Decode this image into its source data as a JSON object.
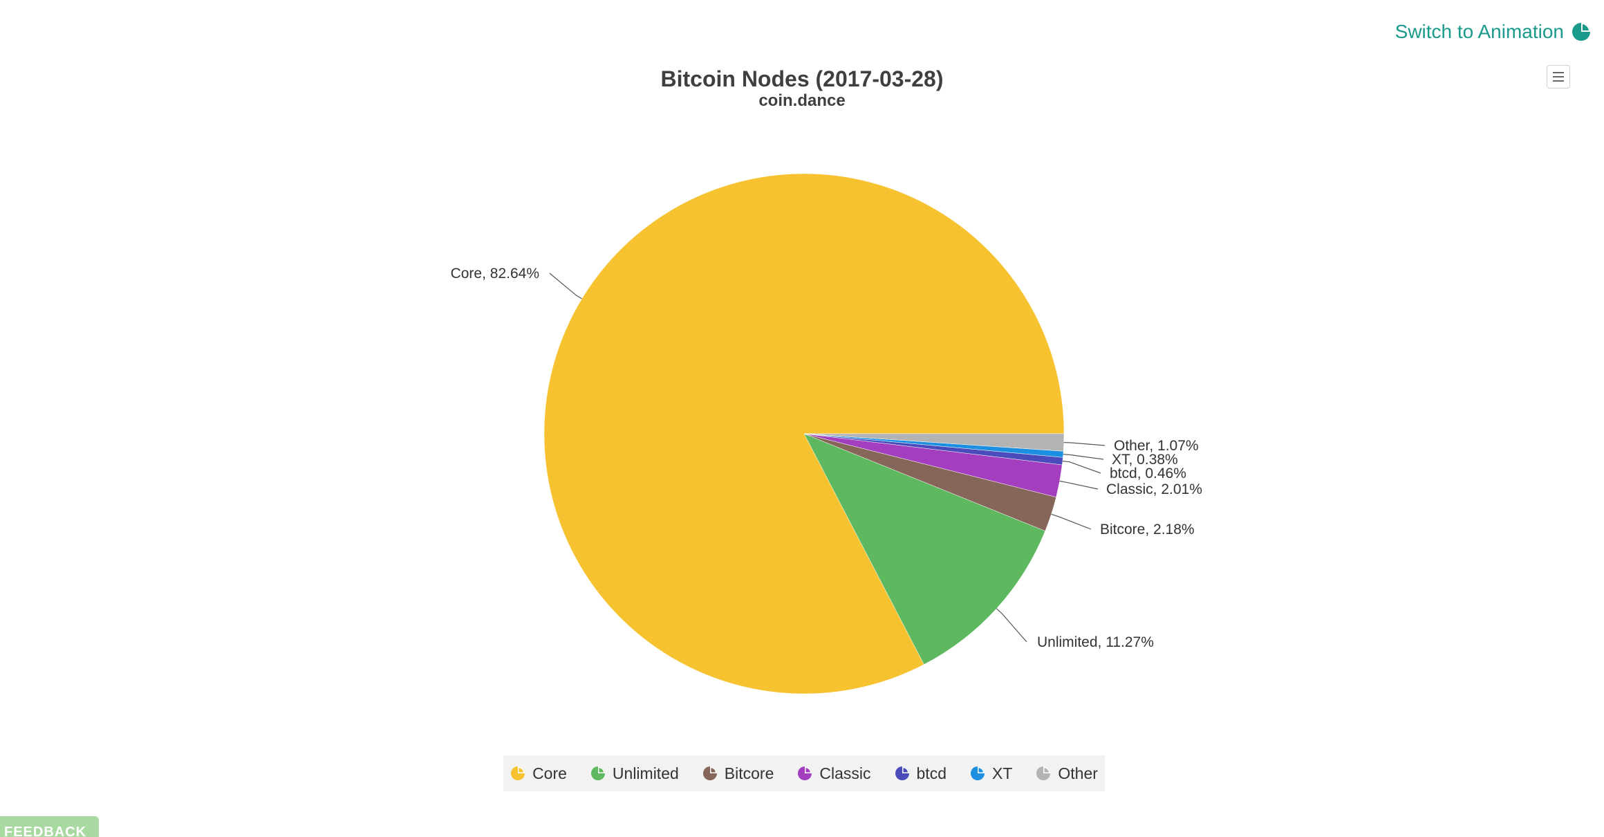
{
  "top_link": {
    "label": "Switch to Animation",
    "icon": "pie-chart-icon",
    "color": "#1a9a8a"
  },
  "menu_button": {
    "icon": "hamburger-menu-icon"
  },
  "feedback": {
    "label": "FEEDBACK"
  },
  "chart_data": {
    "type": "pie",
    "title": "Bitcoin Nodes (2017-03-28)",
    "subtitle": "coin.dance",
    "legend_position": "bottom-center",
    "series": [
      {
        "name": "Core",
        "value": 82.64,
        "label": "Core, 82.64%",
        "color": "#f7c22f"
      },
      {
        "name": "Unlimited",
        "value": 11.27,
        "label": "Unlimited, 11.27%",
        "color": "#5eb85f"
      },
      {
        "name": "Bitcore",
        "value": 2.18,
        "label": "Bitcore, 2.18%",
        "color": "#87665a"
      },
      {
        "name": "Classic",
        "value": 2.01,
        "label": "Classic, 2.01%",
        "color": "#a33fbf"
      },
      {
        "name": "btcd",
        "value": 0.46,
        "label": "btcd, 0.46%",
        "color": "#4a4cbb"
      },
      {
        "name": "XT",
        "value": 0.38,
        "label": "XT, 0.38%",
        "color": "#1d8fe0"
      },
      {
        "name": "Other",
        "value": 1.07,
        "label": "Other, 1.07%",
        "color": "#b3b3b3"
      }
    ]
  }
}
